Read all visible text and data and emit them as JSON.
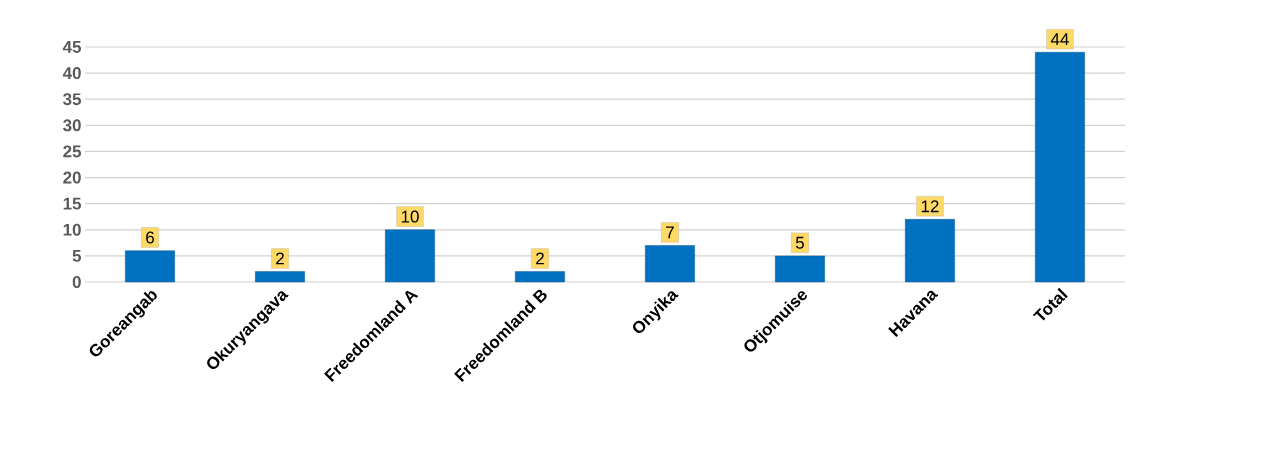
{
  "chart_data": {
    "type": "bar",
    "categories": [
      "Goreangab",
      "Okuryangava",
      "Freedomland A",
      "Freedomland B",
      "Onyika",
      "Otjomuise",
      "Havana",
      "Total"
    ],
    "values": [
      6,
      2,
      10,
      2,
      7,
      5,
      12,
      44
    ],
    "color": "#0070c0",
    "ylim": [
      0,
      45
    ],
    "yticks": [
      0,
      5,
      10,
      15,
      20,
      25,
      30,
      35,
      40,
      45
    ],
    "grid": "y",
    "data_labels": true
  }
}
